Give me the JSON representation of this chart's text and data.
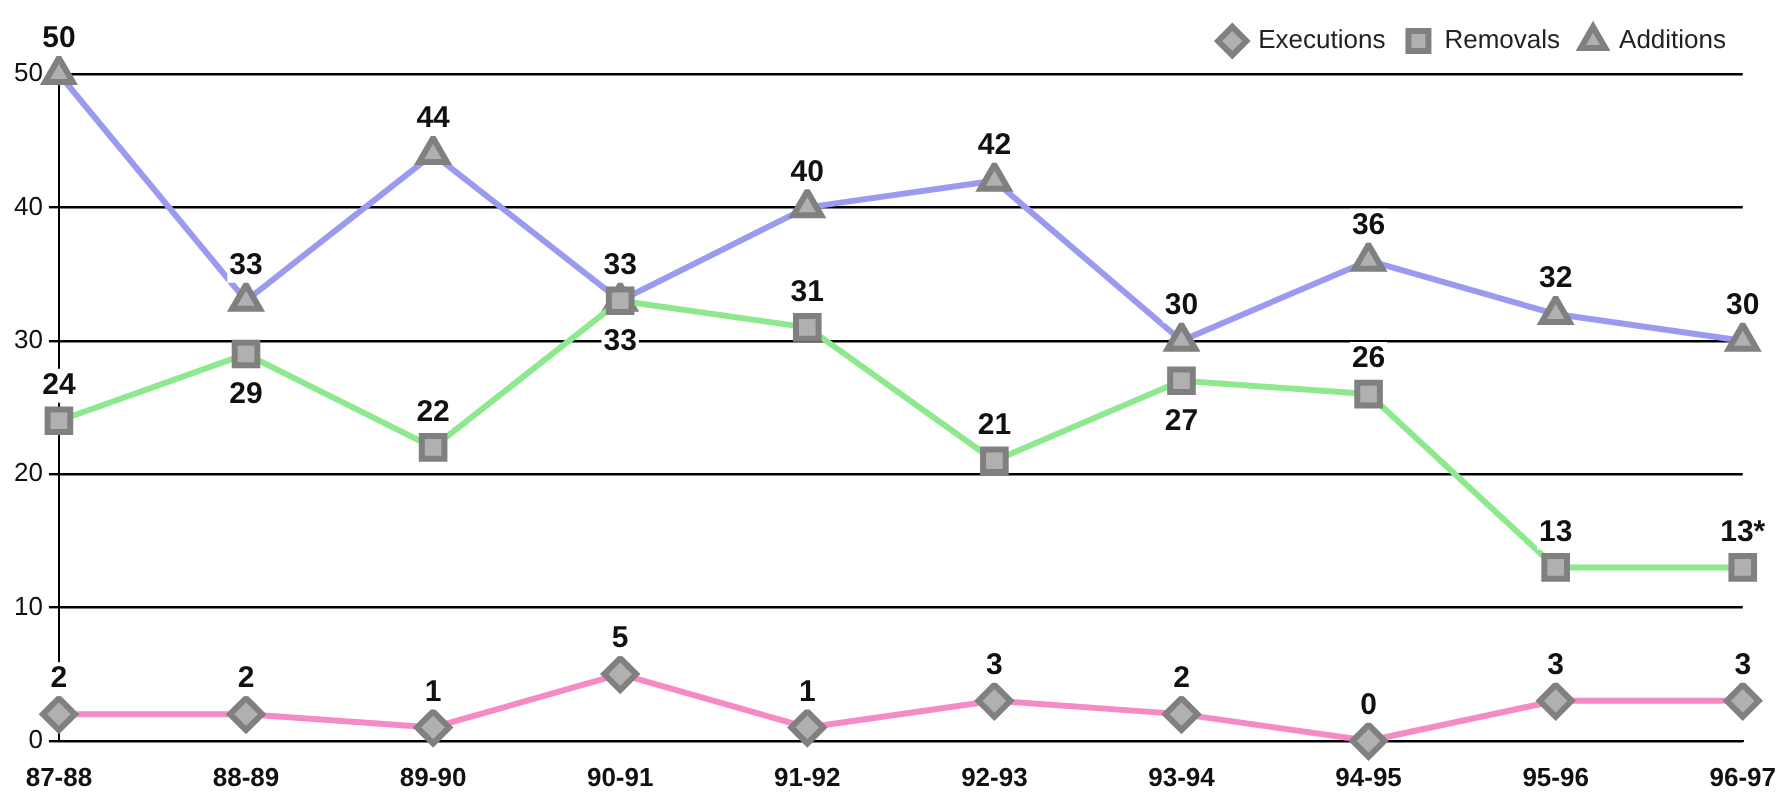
{
  "chart_data": {
    "type": "line",
    "categories": [
      "87-88",
      "88-89",
      "89-90",
      "90-91",
      "91-92",
      "92-93",
      "93-94",
      "94-95",
      "95-96",
      "96-97"
    ],
    "series": [
      {
        "name": "Executions",
        "color": "#f58ac4",
        "marker": "diamond",
        "values": [
          2,
          2,
          1,
          5,
          1,
          3,
          2,
          0,
          3,
          3
        ],
        "value_labels": [
          "2",
          "2",
          "1",
          "5",
          "1",
          "3",
          "2",
          "0",
          "3",
          "3"
        ]
      },
      {
        "name": "Removals",
        "color": "#8ee88e",
        "marker": "square",
        "values": [
          24,
          29,
          22,
          33,
          31,
          21,
          27,
          26,
          13,
          13
        ],
        "value_labels": [
          "24",
          "29",
          "22",
          "33",
          "31",
          "21",
          "27",
          "26",
          "13",
          "13*"
        ]
      },
      {
        "name": "Additions",
        "color": "#9a9af0",
        "marker": "triangle",
        "values": [
          50,
          33,
          44,
          33,
          40,
          42,
          30,
          36,
          32,
          30
        ],
        "value_labels": [
          "50",
          "33",
          "44",
          "33",
          "40",
          "42",
          "30",
          "36",
          "32",
          "30"
        ]
      }
    ],
    "ylim": [
      0,
      50
    ],
    "yticks": [
      0,
      10,
      20,
      30,
      40,
      50
    ],
    "grid": "y",
    "legend": "top right"
  }
}
